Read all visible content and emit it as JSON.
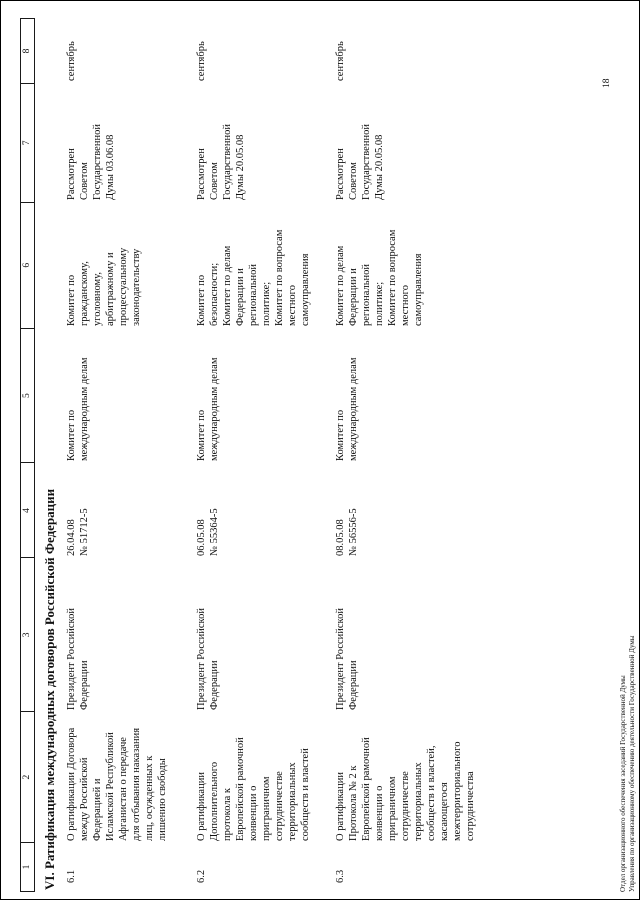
{
  "page": {
    "page_number": "18",
    "footer_line1": "Отдел организационного обеспечения заседаний Государственной Думы",
    "footer_line2": "Управления по организационному обеспечению деятельности Государственной Думы"
  },
  "table": {
    "column_numbers": [
      "1",
      "2",
      "3",
      "4",
      "5",
      "6",
      "7",
      "8"
    ],
    "section_title": "VI. Ратификация международных договоров Российской Федерации",
    "rows": [
      {
        "num": "6.1",
        "title": "О ратификации Договора\nмежду Российской\nФедерацией и\nИсламской Республикой\nАфганистан о передаче\nдля отбывания наказания\nлиц, осужденных к\nлишению свободы",
        "initiator": "Президент Российской\nФедерации",
        "registration": "26.04.08\n№ 51712-5",
        "profile_committee": "Комитет по\nмеждународным делам",
        "co_committees": "Комитет по\nгражданскому,\nуголовному,\nарбитражному и\nпроцессуальному\nзаконодательству",
        "council_review": "Рассмотрен\nСоветом\nГосударственной\nДумы 03.06.08",
        "month": "сентябрь"
      },
      {
        "num": "6.2",
        "title": "О ратификации\nДополнительного\nпротокола к\nЕвропейской рамочной\nконвенции о\nприграничном\nсотрудничестве\nтерриториальных\nсообществ и властей",
        "initiator": "Президент Российской\nФедерации",
        "registration": "06.05.08\n№ 55364-5",
        "profile_committee": "Комитет по\nмеждународным делам",
        "co_committees": "Комитет по\nбезопасности;\nКомитет по делам\nФедерации и\nрегиональной\nполитике;\nКомитет по вопросам\nместного\nсамоуправления",
        "council_review": "Рассмотрен\nСоветом\nГосударственной\nДумы 20.05.08",
        "month": "сентябрь"
      },
      {
        "num": "6.3",
        "title": "О ратификации\nПротокола № 2 к\nЕвропейской рамочной\nконвенции о\nприграничном\nсотрудничестве\nтерриториальных\nсообществ и властей,\nкасающегося\nмежтерриториального\nсотрудничества",
        "initiator": "Президент Российской\nФедерации",
        "registration": "08.05.08\n№ 56556-5",
        "profile_committee": "Комитет по\nмеждународным делам",
        "co_committees": "Комитет по делам\nФедерации и\nрегиональной\nполитике;\nКомитет по вопросам\nместного\nсамоуправления",
        "council_review": "Рассмотрен\nСоветом\nГосударственной\nДумы 20.05.08",
        "month": "сентябрь"
      }
    ]
  }
}
